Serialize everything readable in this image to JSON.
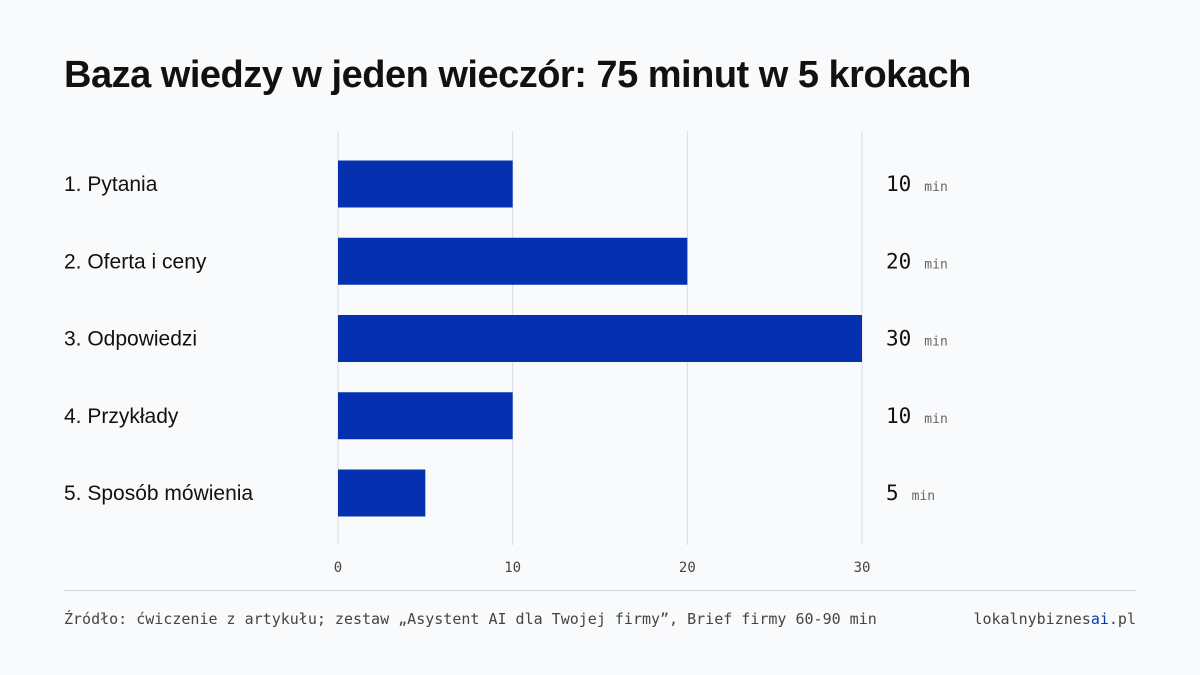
{
  "title": "Baza wiedzy w jeden wieczór: 75 minut w 5 krokach",
  "chart_data": {
    "type": "bar",
    "orientation": "horizontal",
    "categories": [
      "1. Pytania",
      "2. Oferta i ceny",
      "3. Odpowiedzi",
      "4. Przykłady",
      "5. Sposób mówienia"
    ],
    "values": [
      10,
      20,
      30,
      10,
      5
    ],
    "value_unit": "min",
    "xlim": [
      0,
      30
    ],
    "xticks": [
      0,
      10,
      20,
      30
    ],
    "grid": true,
    "legend": "none",
    "bar_color": "#0530b0"
  },
  "footer": {
    "source": "Źródło: ćwiczenie z artykułu; zestaw „Asystent AI dla Twojej firmy”, Brief firmy 60-90 min",
    "brand_prefix": "lokalnybiznes",
    "brand_accent": "ai",
    "brand_suffix": ".pl"
  }
}
